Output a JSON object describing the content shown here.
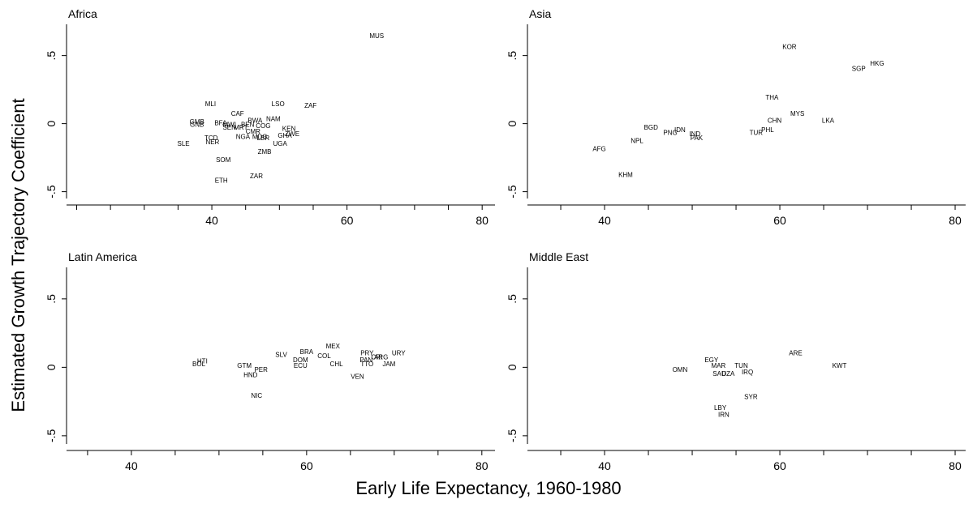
{
  "xlabel": "Early Life Expectancy, 1960-1980",
  "ylabel": "Estimated Growth Trajectory Coefficient",
  "chart_data": [
    {
      "type": "scatter",
      "title": "Africa",
      "xlim": [
        18.5,
        81.9
      ],
      "xticks": [
        40,
        60,
        80
      ],
      "xminorticks": [
        20,
        25,
        30,
        35,
        45,
        50,
        55,
        65,
        70,
        75
      ],
      "ylim": [
        -0.55,
        0.73
      ],
      "yticks": [
        {
          "value": 0.5,
          "label": ".5"
        },
        0,
        {
          "value": -0.5,
          "label": "-.5"
        }
      ],
      "labels": [
        "MUS",
        "MLI",
        "LSO",
        "ZAF",
        "CAF",
        "NAM",
        "BWA",
        "GMB",
        "GNB",
        "BFA",
        "MWI",
        "SEN",
        "MRT",
        "BEN",
        "COG",
        "CMR",
        "KEN",
        "GHA",
        "ZWE",
        "UGA",
        "NGA",
        "MDG",
        "LBR",
        "TCD",
        "NER",
        "SLE",
        "SOM",
        "ZMB",
        "ZAR",
        "ETH"
      ],
      "x": [
        64.4,
        39.8,
        49.8,
        54.6,
        43.8,
        49.1,
        46.4,
        37.8,
        37.8,
        41.3,
        42.6,
        42.6,
        44.3,
        45.3,
        47.6,
        46.1,
        51.4,
        50.8,
        51.9,
        50.1,
        44.6,
        47.1,
        47.6,
        39.9,
        40.1,
        35.8,
        41.7,
        47.8,
        46.6,
        41.4
      ],
      "y": [
        0.64,
        0.14,
        0.14,
        0.13,
        0.07,
        0.03,
        0.02,
        0.01,
        -0.01,
        0.0,
        -0.01,
        -0.03,
        -0.03,
        -0.01,
        -0.02,
        -0.06,
        -0.04,
        -0.09,
        -0.08,
        -0.15,
        -0.1,
        -0.1,
        -0.11,
        -0.11,
        -0.14,
        -0.15,
        -0.27,
        -0.21,
        -0.39,
        -0.42
      ]
    },
    {
      "type": "scatter",
      "title": "Asia",
      "xlim": [
        31.2,
        81.2
      ],
      "xticks": [
        40,
        60,
        80
      ],
      "xminorticks": [
        35,
        45,
        50,
        55,
        65,
        70,
        75
      ],
      "ylim": [
        -0.55,
        0.73
      ],
      "yticks": [
        {
          "value": 0.5,
          "label": ".5"
        },
        0,
        {
          "value": -0.5,
          "label": "-.5"
        }
      ],
      "labels": [
        "KOR",
        "HKG",
        "SGP",
        "THA",
        "MYS",
        "LKA",
        "CHN",
        "PHL",
        "TUR",
        "BGD",
        "PNG",
        "IDN",
        "IND",
        "PAK",
        "NPL",
        "AFG",
        "KHM"
      ],
      "x": [
        61.1,
        71.1,
        69.0,
        59.1,
        62.0,
        65.5,
        59.4,
        58.6,
        57.3,
        45.3,
        47.5,
        48.6,
        50.3,
        50.5,
        43.7,
        39.4,
        42.4
      ],
      "y": [
        0.56,
        0.44,
        0.4,
        0.19,
        0.07,
        0.02,
        0.02,
        -0.05,
        -0.07,
        -0.03,
        -0.07,
        -0.05,
        -0.08,
        -0.11,
        -0.13,
        -0.19,
        -0.38
      ]
    },
    {
      "type": "scatter",
      "title": "Latin America",
      "xlim": [
        32.6,
        81.5
      ],
      "xticks": [
        40,
        60,
        80
      ],
      "xminorticks": [
        35,
        45,
        50,
        55,
        65,
        70,
        75
      ],
      "ylim": [
        -0.56,
        0.73
      ],
      "yticks": [
        {
          "value": 0.5,
          "label": ".5"
        },
        0,
        {
          "value": -0.5,
          "label": "-.5"
        }
      ],
      "labels": [
        "BOL",
        "HTI",
        "GTM",
        "PER",
        "HND",
        "NIC",
        "SLV",
        "BRA",
        "DOM",
        "ECU",
        "MEX",
        "COL",
        "CHL",
        "VEN",
        "PRY",
        "PAN",
        "CRI",
        "ARG",
        "TTO",
        "URY",
        "JAM"
      ],
      "x": [
        47.7,
        48.1,
        52.9,
        54.8,
        53.6,
        54.3,
        57.1,
        60.0,
        59.3,
        59.3,
        63.0,
        62.0,
        63.4,
        65.8,
        66.9,
        66.8,
        68.0,
        68.5,
        66.9,
        70.5,
        69.4
      ],
      "y": [
        0.02,
        0.04,
        0.01,
        -0.02,
        -0.06,
        -0.21,
        0.09,
        0.11,
        0.05,
        0.01,
        0.15,
        0.08,
        0.02,
        -0.07,
        0.1,
        0.05,
        0.07,
        0.07,
        0.02,
        0.1,
        0.02
      ]
    },
    {
      "type": "scatter",
      "title": "Middle East",
      "xlim": [
        31.2,
        81.2
      ],
      "xticks": [
        40,
        60,
        80
      ],
      "xminorticks": [
        35,
        45,
        50,
        55,
        65,
        70,
        75
      ],
      "ylim": [
        -0.56,
        0.73
      ],
      "yticks": [
        {
          "value": 0.5,
          "label": ".5"
        },
        0,
        {
          "value": -0.5,
          "label": "-.5"
        }
      ],
      "labels": [
        "ARE",
        "KWT",
        "EGY",
        "MAR",
        "TUN",
        "OMN",
        "SAU",
        "DZA",
        "IRQ",
        "SYR",
        "LBY",
        "IRN"
      ],
      "x": [
        61.8,
        66.8,
        52.2,
        53.0,
        55.6,
        48.6,
        53.1,
        54.1,
        56.3,
        56.7,
        53.2,
        53.6
      ],
      "y": [
        0.1,
        0.01,
        0.05,
        0.01,
        0.01,
        -0.02,
        -0.05,
        -0.05,
        -0.04,
        -0.22,
        -0.3,
        -0.35
      ]
    }
  ]
}
